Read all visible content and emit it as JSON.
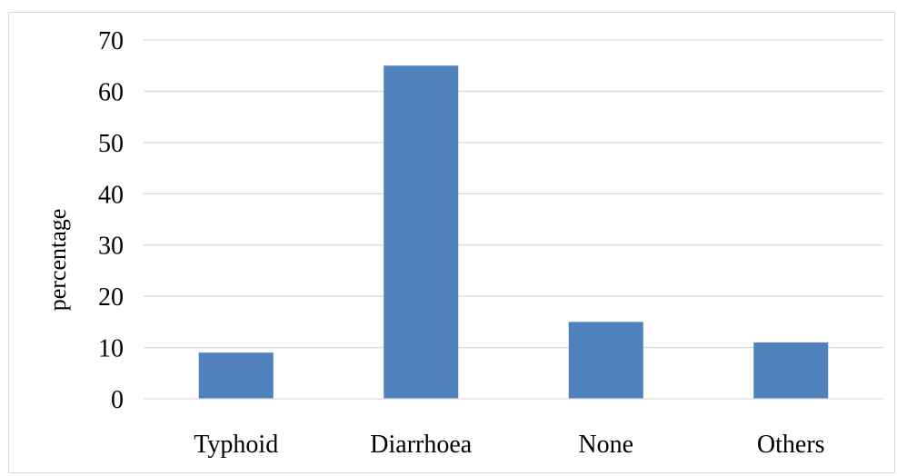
{
  "chart_data": {
    "type": "bar",
    "categories": [
      "Typhoid",
      "Diarrhoea",
      "None",
      "Others"
    ],
    "values": [
      9,
      65,
      15,
      11
    ],
    "ylabel": "percentage",
    "xlabel": "",
    "ylim": [
      0,
      70
    ],
    "yticks": [
      0,
      10,
      20,
      30,
      40,
      50,
      60,
      70
    ],
    "grid": true,
    "legend": "none",
    "bar_color": "#4f81bd",
    "grid_color": "#d9d9d9"
  }
}
